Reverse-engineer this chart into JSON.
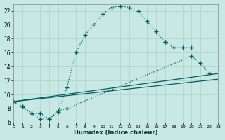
{
  "xlabel": "Humidex (Indice chaleur)",
  "bg_color": "#c8e8e4",
  "grid_color": "#b0d0cc",
  "line_color": "#006060",
  "xlim": [
    0,
    23
  ],
  "ylim": [
    6,
    23
  ],
  "xticks": [
    0,
    1,
    2,
    3,
    4,
    5,
    6,
    7,
    8,
    9,
    10,
    11,
    12,
    13,
    14,
    15,
    16,
    17,
    18,
    19,
    20,
    21,
    22,
    23
  ],
  "yticks": [
    6,
    8,
    10,
    12,
    14,
    16,
    18,
    20,
    22
  ],
  "curve1_x": [
    0,
    1,
    2,
    3,
    4,
    5,
    6,
    7,
    8,
    9,
    10,
    11,
    12,
    13,
    14,
    15,
    16,
    17,
    18,
    19,
    20
  ],
  "curve1_y": [
    9.0,
    8.3,
    7.3,
    6.5,
    6.5,
    7.5,
    11.0,
    16.0,
    18.5,
    20.0,
    21.5,
    22.5,
    22.7,
    22.5,
    22.0,
    20.5,
    19.0,
    17.5,
    16.7,
    16.7,
    16.7
  ],
  "curve2_x": [
    0,
    1,
    2,
    3,
    4,
    5,
    6,
    20,
    21,
    22
  ],
  "curve2_y": [
    9.0,
    8.3,
    7.3,
    7.3,
    6.5,
    7.7,
    8.0,
    15.5,
    14.5,
    13.0
  ],
  "line1_x": [
    0,
    23
  ],
  "line1_y": [
    9.0,
    13.0
  ],
  "line2_x": [
    0,
    23
  ],
  "line2_y": [
    9.0,
    12.2
  ]
}
